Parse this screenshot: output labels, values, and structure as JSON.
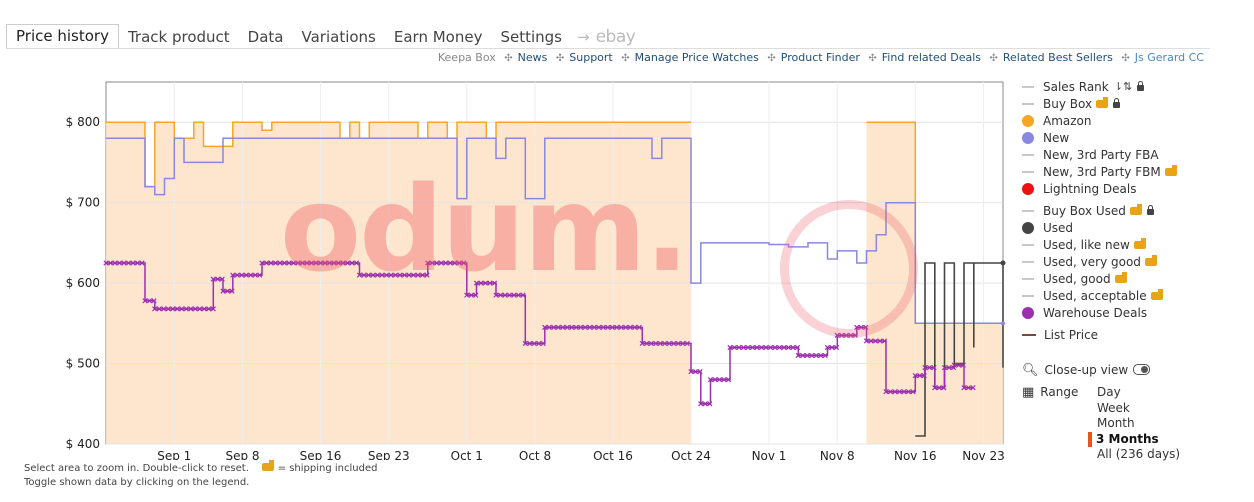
{
  "tabs": [
    {
      "label": "Price history",
      "active": true
    },
    {
      "label": "Track product"
    },
    {
      "label": "Data"
    },
    {
      "label": "Variations"
    },
    {
      "label": "Earn Money"
    },
    {
      "label": "Settings"
    }
  ],
  "tab_extra": {
    "arrow": "→",
    "ebay": "ebay"
  },
  "links": {
    "keepa_box": "Keepa Box",
    "items": [
      "News",
      "Support",
      "Manage Price Watches",
      "Product Finder",
      "Find related Deals",
      "Related Best Sellers"
    ],
    "account": "Js Gerard CC"
  },
  "watermark": "odum.",
  "legend": [
    {
      "label": "Sales Rank",
      "symbol": "line",
      "color": "#c8c8c8",
      "icons": [
        "sort-icon",
        "lock-icon"
      ]
    },
    {
      "label": "Buy Box",
      "symbol": "line",
      "color": "#c8c8c8",
      "icons": [
        "truck-icon",
        "lock-icon"
      ]
    },
    {
      "label": "Amazon",
      "symbol": "dot",
      "color": "#f5a623"
    },
    {
      "label": "New",
      "symbol": "dot",
      "color": "#8888e0"
    },
    {
      "label": "New, 3rd Party FBA",
      "symbol": "line",
      "color": "#c8c8c8"
    },
    {
      "label": "New, 3rd Party FBM",
      "symbol": "line",
      "color": "#c8c8c8",
      "icons": [
        "truck-icon"
      ]
    },
    {
      "label": "Lightning Deals",
      "symbol": "dot",
      "color": "#ee1111"
    },
    {
      "label": "Buy Box Used",
      "symbol": "line",
      "color": "#c8c8c8",
      "icons": [
        "truck-icon",
        "lock-icon"
      ],
      "gap": true
    },
    {
      "label": "Used",
      "symbol": "dot",
      "color": "#444444"
    },
    {
      "label": "Used, like new",
      "symbol": "line",
      "color": "#c8c8c8",
      "icons": [
        "truck-icon"
      ]
    },
    {
      "label": "Used, very good",
      "symbol": "line",
      "color": "#c8c8c8",
      "icons": [
        "truck-icon"
      ]
    },
    {
      "label": "Used, good",
      "symbol": "line",
      "color": "#c8c8c8",
      "icons": [
        "truck-icon"
      ]
    },
    {
      "label": "Used, acceptable",
      "symbol": "line",
      "color": "#c8c8c8",
      "icons": [
        "truck-icon"
      ]
    },
    {
      "label": "Warehouse Deals",
      "symbol": "dot",
      "color": "#9b2fae"
    },
    {
      "label": "List Price",
      "symbol": "dark-line",
      "color": "#7a4b3a",
      "gap": true
    }
  ],
  "controls": {
    "closeup_label": "Close-up view",
    "range_label": "Range"
  },
  "ranges": [
    {
      "label": "Day"
    },
    {
      "label": "Week"
    },
    {
      "label": "Month"
    },
    {
      "label": "3 Months",
      "selected": true
    },
    {
      "label": "All (236 days)"
    }
  ],
  "notes": {
    "line1_a": "Select area to zoom in. Double-click to reset.",
    "line1_b": "= shipping included",
    "line2": "Toggle shown data by clicking on the legend."
  },
  "chart_data": {
    "type": "line",
    "xlabel": "",
    "ylabel": "",
    "yticks": [
      "$ 400",
      "$ 500",
      "$ 600",
      "$ 700",
      "$ 800"
    ],
    "ylim": [
      400,
      850
    ],
    "xlim": [
      "2019-08-25",
      "2019-11-25"
    ],
    "xticks": [
      {
        "date": "2019-09-01",
        "label": "Sep 1"
      },
      {
        "date": "2019-09-08",
        "label": "Sep 8"
      },
      {
        "date": "2019-09-16",
        "label": "Sep 16"
      },
      {
        "date": "2019-09-23",
        "label": "Sep 23"
      },
      {
        "date": "2019-10-01",
        "label": "Oct 1"
      },
      {
        "date": "2019-10-08",
        "label": "Oct 8"
      },
      {
        "date": "2019-10-16",
        "label": "Oct 16"
      },
      {
        "date": "2019-10-24",
        "label": "Oct 24"
      },
      {
        "date": "2019-11-01",
        "label": "Nov 1"
      },
      {
        "date": "2019-11-08",
        "label": "Nov 8"
      },
      {
        "date": "2019-11-16",
        "label": "Nov 16"
      },
      {
        "date": "2019-11-23",
        "label": "Nov 23"
      }
    ],
    "grid": true,
    "step": true,
    "series": [
      {
        "name": "Amazon",
        "color": "#f5a623",
        "fill": "#fde2c4",
        "points": [
          [
            "2019-08-25",
            800
          ],
          [
            "2019-08-29",
            800
          ],
          [
            "2019-08-29",
            720
          ],
          [
            "2019-08-30",
            720
          ],
          [
            "2019-08-30",
            800
          ],
          [
            "2019-09-01",
            800
          ],
          [
            "2019-09-01",
            780
          ],
          [
            "2019-09-03",
            780
          ],
          [
            "2019-09-03",
            800
          ],
          [
            "2019-09-04",
            800
          ],
          [
            "2019-09-04",
            770
          ],
          [
            "2019-09-07",
            770
          ],
          [
            "2019-09-07",
            800
          ],
          [
            "2019-09-10",
            800
          ],
          [
            "2019-09-10",
            790
          ],
          [
            "2019-09-11",
            790
          ],
          [
            "2019-09-11",
            800
          ],
          [
            "2019-09-18",
            800
          ],
          [
            "2019-09-18",
            780
          ],
          [
            "2019-09-19",
            780
          ],
          [
            "2019-09-19",
            800
          ],
          [
            "2019-09-20",
            800
          ],
          [
            "2019-09-20",
            780
          ],
          [
            "2019-09-21",
            780
          ],
          [
            "2019-09-21",
            800
          ],
          [
            "2019-09-26",
            800
          ],
          [
            "2019-09-26",
            780
          ],
          [
            "2019-09-27",
            780
          ],
          [
            "2019-09-27",
            800
          ],
          [
            "2019-09-29",
            800
          ],
          [
            "2019-09-29",
            780
          ],
          [
            "2019-09-30",
            780
          ],
          [
            "2019-09-30",
            800
          ],
          [
            "2019-10-03",
            800
          ],
          [
            "2019-10-03",
            780
          ],
          [
            "2019-10-04",
            780
          ],
          [
            "2019-10-04",
            800
          ],
          [
            "2019-10-24",
            800
          ],
          [
            "2019-10-24",
            null
          ],
          [
            "2019-11-11",
            null
          ],
          [
            "2019-11-11",
            800
          ],
          [
            "2019-11-16",
            800
          ],
          [
            "2019-11-16",
            550
          ],
          [
            "2019-11-25",
            550
          ]
        ]
      },
      {
        "name": "New",
        "color": "#8888e0",
        "points": [
          [
            "2019-08-25",
            780
          ],
          [
            "2019-08-29",
            780
          ],
          [
            "2019-08-29",
            720
          ],
          [
            "2019-08-30",
            720
          ],
          [
            "2019-08-30",
            710
          ],
          [
            "2019-08-31",
            710
          ],
          [
            "2019-08-31",
            730
          ],
          [
            "2019-09-01",
            730
          ],
          [
            "2019-09-01",
            780
          ],
          [
            "2019-09-02",
            780
          ],
          [
            "2019-09-02",
            750
          ],
          [
            "2019-09-06",
            750
          ],
          [
            "2019-09-06",
            780
          ],
          [
            "2019-09-30",
            780
          ],
          [
            "2019-09-30",
            705
          ],
          [
            "2019-10-01",
            705
          ],
          [
            "2019-10-01",
            780
          ],
          [
            "2019-10-04",
            780
          ],
          [
            "2019-10-04",
            755
          ],
          [
            "2019-10-05",
            755
          ],
          [
            "2019-10-05",
            780
          ],
          [
            "2019-10-07",
            780
          ],
          [
            "2019-10-07",
            705
          ],
          [
            "2019-10-09",
            705
          ],
          [
            "2019-10-09",
            780
          ],
          [
            "2019-10-20",
            780
          ],
          [
            "2019-10-20",
            755
          ],
          [
            "2019-10-21",
            755
          ],
          [
            "2019-10-21",
            780
          ],
          [
            "2019-10-24",
            780
          ],
          [
            "2019-10-24",
            600
          ],
          [
            "2019-10-25",
            600
          ],
          [
            "2019-10-25",
            650
          ],
          [
            "2019-11-01",
            650
          ],
          [
            "2019-11-01",
            648
          ],
          [
            "2019-11-03",
            648
          ],
          [
            "2019-11-03",
            645
          ],
          [
            "2019-11-05",
            645
          ],
          [
            "2019-11-05",
            650
          ],
          [
            "2019-11-07",
            650
          ],
          [
            "2019-11-07",
            630
          ],
          [
            "2019-11-08",
            630
          ],
          [
            "2019-11-08",
            640
          ],
          [
            "2019-11-10",
            640
          ],
          [
            "2019-11-10",
            625
          ],
          [
            "2019-11-11",
            625
          ],
          [
            "2019-11-11",
            640
          ],
          [
            "2019-11-12",
            640
          ],
          [
            "2019-11-12",
            660
          ],
          [
            "2019-11-13",
            660
          ],
          [
            "2019-11-13",
            700
          ],
          [
            "2019-11-16",
            700
          ],
          [
            "2019-11-16",
            550
          ],
          [
            "2019-11-25",
            550
          ]
        ]
      },
      {
        "name": "Used",
        "color": "#444444",
        "points": [
          [
            "2019-10-25",
            null
          ],
          [
            "2019-11-16",
            null
          ],
          [
            "2019-11-16",
            410
          ],
          [
            "2019-11-17",
            410
          ],
          [
            "2019-11-17",
            625
          ],
          [
            "2019-11-18",
            625
          ],
          [
            "2019-11-18",
            470
          ],
          [
            "2019-11-19",
            470
          ],
          [
            "2019-11-19",
            625
          ],
          [
            "2019-11-20",
            625
          ],
          [
            "2019-11-20",
            500
          ],
          [
            "2019-11-21",
            500
          ],
          [
            "2019-11-21",
            625
          ],
          [
            "2019-11-22",
            625
          ],
          [
            "2019-11-22",
            520
          ],
          [
            "2019-11-22",
            625
          ],
          [
            "2019-11-25",
            625
          ],
          [
            "2019-11-25",
            495
          ],
          [
            "2019-11-25",
            625
          ]
        ]
      },
      {
        "name": "Warehouse Deals",
        "color": "#9b2fae",
        "points": [
          [
            "2019-08-25",
            625
          ],
          [
            "2019-08-29",
            625
          ],
          [
            "2019-08-29",
            578
          ],
          [
            "2019-08-30",
            578
          ],
          [
            "2019-08-30",
            568
          ],
          [
            "2019-09-05",
            568
          ],
          [
            "2019-09-05",
            605
          ],
          [
            "2019-09-06",
            605
          ],
          [
            "2019-09-06",
            590
          ],
          [
            "2019-09-07",
            590
          ],
          [
            "2019-09-07",
            610
          ],
          [
            "2019-09-10",
            610
          ],
          [
            "2019-09-10",
            625
          ],
          [
            "2019-09-20",
            625
          ],
          [
            "2019-09-20",
            610
          ],
          [
            "2019-09-27",
            610
          ],
          [
            "2019-09-27",
            625
          ],
          [
            "2019-10-01",
            625
          ],
          [
            "2019-10-01",
            585
          ],
          [
            "2019-10-02",
            585
          ],
          [
            "2019-10-02",
            600
          ],
          [
            "2019-10-04",
            600
          ],
          [
            "2019-10-04",
            585
          ],
          [
            "2019-10-07",
            585
          ],
          [
            "2019-10-07",
            525
          ],
          [
            "2019-10-09",
            525
          ],
          [
            "2019-10-09",
            545
          ],
          [
            "2019-10-19",
            545
          ],
          [
            "2019-10-19",
            525
          ],
          [
            "2019-10-24",
            525
          ],
          [
            "2019-10-24",
            490
          ],
          [
            "2019-10-25",
            490
          ],
          [
            "2019-10-25",
            450
          ],
          [
            "2019-10-26",
            450
          ],
          [
            "2019-10-26",
            480
          ],
          [
            "2019-10-28",
            480
          ],
          [
            "2019-10-28",
            520
          ],
          [
            "2019-11-04",
            520
          ],
          [
            "2019-11-04",
            510
          ],
          [
            "2019-11-07",
            510
          ],
          [
            "2019-11-07",
            520
          ],
          [
            "2019-11-08",
            520
          ],
          [
            "2019-11-08",
            535
          ],
          [
            "2019-11-10",
            535
          ],
          [
            "2019-11-10",
            545
          ],
          [
            "2019-11-11",
            545
          ],
          [
            "2019-11-11",
            528
          ],
          [
            "2019-11-13",
            528
          ],
          [
            "2019-11-13",
            465
          ],
          [
            "2019-11-16",
            465
          ],
          [
            "2019-11-16",
            485
          ],
          [
            "2019-11-17",
            485
          ],
          [
            "2019-11-17",
            495
          ],
          [
            "2019-11-18",
            495
          ],
          [
            "2019-11-18",
            470
          ],
          [
            "2019-11-19",
            470
          ],
          [
            "2019-11-19",
            495
          ],
          [
            "2019-11-20",
            495
          ],
          [
            "2019-11-20",
            498
          ],
          [
            "2019-11-21",
            498
          ],
          [
            "2019-11-21",
            470
          ],
          [
            "2019-11-22",
            470
          ]
        ]
      }
    ]
  }
}
